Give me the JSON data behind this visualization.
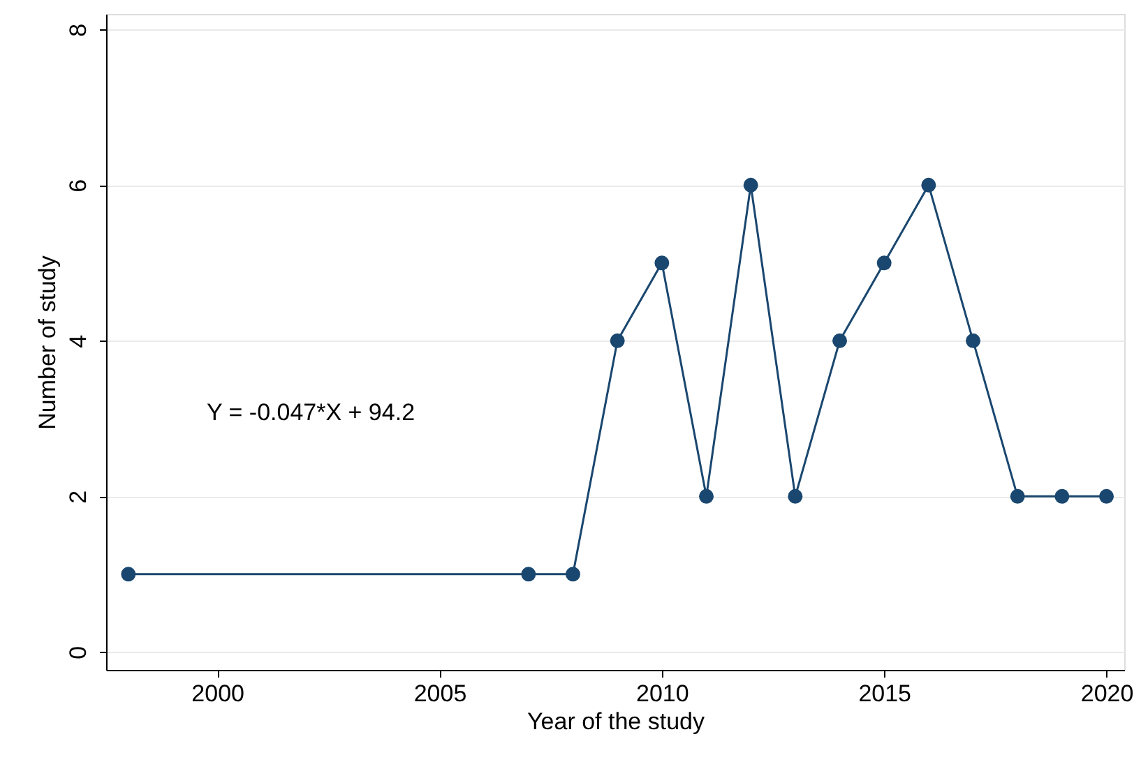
{
  "chart_data": {
    "type": "line",
    "xlabel": "Year of the study",
    "ylabel": "Number of study",
    "x": [
      1998,
      2007,
      2008,
      2009,
      2010,
      2011,
      2012,
      2013,
      2014,
      2015,
      2016,
      2017,
      2018,
      2019,
      2020
    ],
    "series": [
      {
        "color": "#1a476f",
        "values": [
          1,
          1,
          1,
          4,
          5,
          2,
          6,
          2,
          4,
          5,
          6,
          4,
          2,
          2,
          2
        ]
      }
    ],
    "xlim": [
      1997.5,
      2020.4
    ],
    "xticks": [
      2000,
      2005,
      2010,
      2015,
      2020
    ],
    "ylim": [
      -0.23,
      8.2
    ],
    "yticks": [
      0,
      2,
      4,
      6,
      8
    ],
    "grid": "y",
    "marker": "circle",
    "line_style": "solid",
    "annotations": [
      "Y = -0.047*X + 94.2"
    ]
  }
}
